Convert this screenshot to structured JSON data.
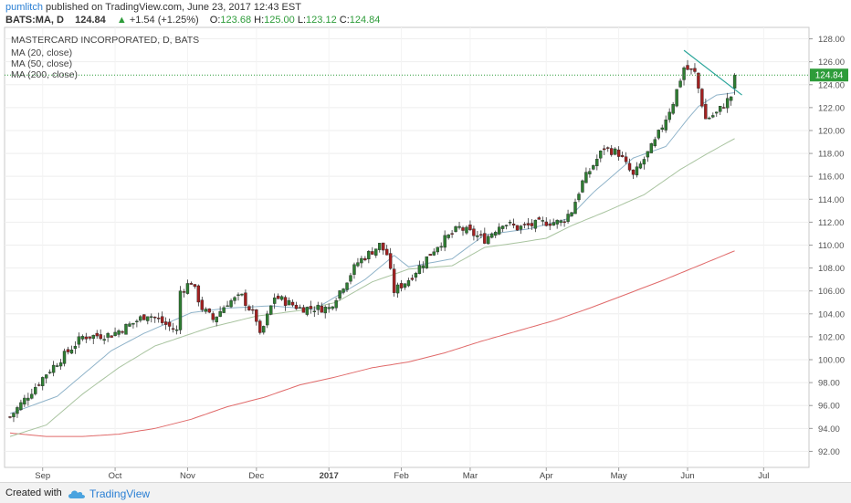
{
  "header": {
    "author": "pumlitch",
    "published": "published on TradingView.com, June 23, 2017 12:43 EST",
    "symbol": "BATS:MA, D",
    "last": "124.84",
    "change_arrow": "▲",
    "change": "+1.54 (+1.25%)",
    "o_label": "O:",
    "o_val": "123.68",
    "h_label": "H:",
    "h_val": "125.00",
    "l_label": "L:",
    "l_val": "123.12",
    "c_label": "C:",
    "c_val": "124.84"
  },
  "legend": {
    "title": "MASTERCARD INCORPORATED, D, BATS",
    "ma20": "MA (20, close)",
    "ma50": "MA (50, close)",
    "ma200": "MA (200, close)"
  },
  "footer": {
    "created_with": "Created with",
    "brand": "TradingView"
  },
  "colors": {
    "up": "#2e7d32",
    "down": "#a32020",
    "ma20": "#8fb3c9",
    "ma50": "#a9c4a0",
    "ma200": "#e06a6a",
    "trendline": "#2aa59a",
    "price_line": "#2e9c3a",
    "price_badge": "#2e9c3a"
  },
  "chart_data": {
    "type": "candlestick",
    "y_ticks": [
      "92.00",
      "94.00",
      "96.00",
      "98.00",
      "100.00",
      "102.00",
      "104.00",
      "106.00",
      "108.00",
      "110.00",
      "112.00",
      "114.00",
      "116.00",
      "118.00",
      "120.00",
      "122.00",
      "124.00",
      "126.00",
      "128.00"
    ],
    "ylim": [
      90.6,
      129.0
    ],
    "x_ticks": [
      "Sep",
      "Oct",
      "Nov",
      "Dec",
      "2017",
      "Feb",
      "Mar",
      "Apr",
      "May",
      "Jun",
      "Jul"
    ],
    "x_tick_bars": [
      9,
      29,
      49,
      68,
      88,
      108,
      127,
      148,
      168,
      187,
      208
    ],
    "n_bars": 220,
    "last_price_label": "124.84",
    "last_price": 124.84,
    "close_anchors": [
      [
        0,
        95.0
      ],
      [
        10,
        98.8
      ],
      [
        20,
        102.0
      ],
      [
        28,
        102.2
      ],
      [
        34,
        103.2
      ],
      [
        38,
        104.0
      ],
      [
        46,
        102.5
      ],
      [
        47,
        106.0
      ],
      [
        50,
        106.8
      ],
      [
        53,
        104.5
      ],
      [
        56,
        103.5
      ],
      [
        60,
        105.0
      ],
      [
        64,
        105.5
      ],
      [
        68,
        103.5
      ],
      [
        69,
        102.0
      ],
      [
        73,
        105.5
      ],
      [
        80,
        104.5
      ],
      [
        88,
        104.5
      ],
      [
        92,
        106.5
      ],
      [
        96,
        108.5
      ],
      [
        102,
        110.0
      ],
      [
        104,
        109.2
      ],
      [
        106,
        106.0
      ],
      [
        110,
        107.0
      ],
      [
        114,
        108.5
      ],
      [
        118,
        110.0
      ],
      [
        124,
        111.5
      ],
      [
        131,
        110.5
      ],
      [
        136,
        112.0
      ],
      [
        140,
        111.5
      ],
      [
        148,
        112.0
      ],
      [
        152,
        112.0
      ],
      [
        155,
        113.0
      ],
      [
        158,
        115.5
      ],
      [
        164,
        118.5
      ],
      [
        168,
        118.0
      ],
      [
        172,
        116.0
      ],
      [
        178,
        119.0
      ],
      [
        183,
        122.5
      ],
      [
        186,
        125.5
      ],
      [
        189,
        125.0
      ],
      [
        192,
        121.0
      ],
      [
        195,
        121.5
      ],
      [
        199,
        123.0
      ],
      [
        200,
        124.84
      ]
    ],
    "volatility": 0.55,
    "ma20_anchors": [
      [
        0,
        95.3
      ],
      [
        13,
        96.8
      ],
      [
        28,
        100.8
      ],
      [
        37,
        102.3
      ],
      [
        50,
        104.1
      ],
      [
        60,
        104.5
      ],
      [
        72,
        104.7
      ],
      [
        84,
        104.4
      ],
      [
        98,
        107.0
      ],
      [
        106,
        109.1
      ],
      [
        110,
        108.1
      ],
      [
        122,
        108.8
      ],
      [
        131,
        110.9
      ],
      [
        143,
        111.4
      ],
      [
        154,
        112.3
      ],
      [
        161,
        114.6
      ],
      [
        172,
        117.6
      ],
      [
        181,
        118.6
      ],
      [
        187,
        121.0
      ],
      [
        190,
        122.1
      ],
      [
        195,
        123.1
      ],
      [
        200,
        123.3
      ]
    ],
    "ma50_anchors": [
      [
        0,
        93.3
      ],
      [
        10,
        94.3
      ],
      [
        20,
        97.0
      ],
      [
        30,
        99.3
      ],
      [
        40,
        101.2
      ],
      [
        55,
        102.8
      ],
      [
        68,
        103.8
      ],
      [
        80,
        104.3
      ],
      [
        90,
        105.0
      ],
      [
        100,
        106.8
      ],
      [
        110,
        107.9
      ],
      [
        122,
        108.2
      ],
      [
        131,
        109.8
      ],
      [
        140,
        110.2
      ],
      [
        148,
        110.6
      ],
      [
        155,
        111.7
      ],
      [
        165,
        113.0
      ],
      [
        175,
        114.4
      ],
      [
        185,
        116.6
      ],
      [
        192,
        117.9
      ],
      [
        200,
        119.3
      ]
    ],
    "ma200_anchors": [
      [
        0,
        93.6
      ],
      [
        10,
        93.3
      ],
      [
        20,
        93.3
      ],
      [
        30,
        93.5
      ],
      [
        40,
        94.0
      ],
      [
        50,
        94.8
      ],
      [
        60,
        95.9
      ],
      [
        70,
        96.7
      ],
      [
        80,
        97.8
      ],
      [
        90,
        98.5
      ],
      [
        100,
        99.3
      ],
      [
        110,
        99.8
      ],
      [
        120,
        100.6
      ],
      [
        130,
        101.6
      ],
      [
        140,
        102.5
      ],
      [
        150,
        103.4
      ],
      [
        160,
        104.5
      ],
      [
        170,
        105.7
      ],
      [
        180,
        106.9
      ],
      [
        190,
        108.2
      ],
      [
        200,
        109.5
      ]
    ],
    "trendline": [
      [
        186,
        127.0
      ],
      [
        202,
        123.1
      ]
    ]
  }
}
